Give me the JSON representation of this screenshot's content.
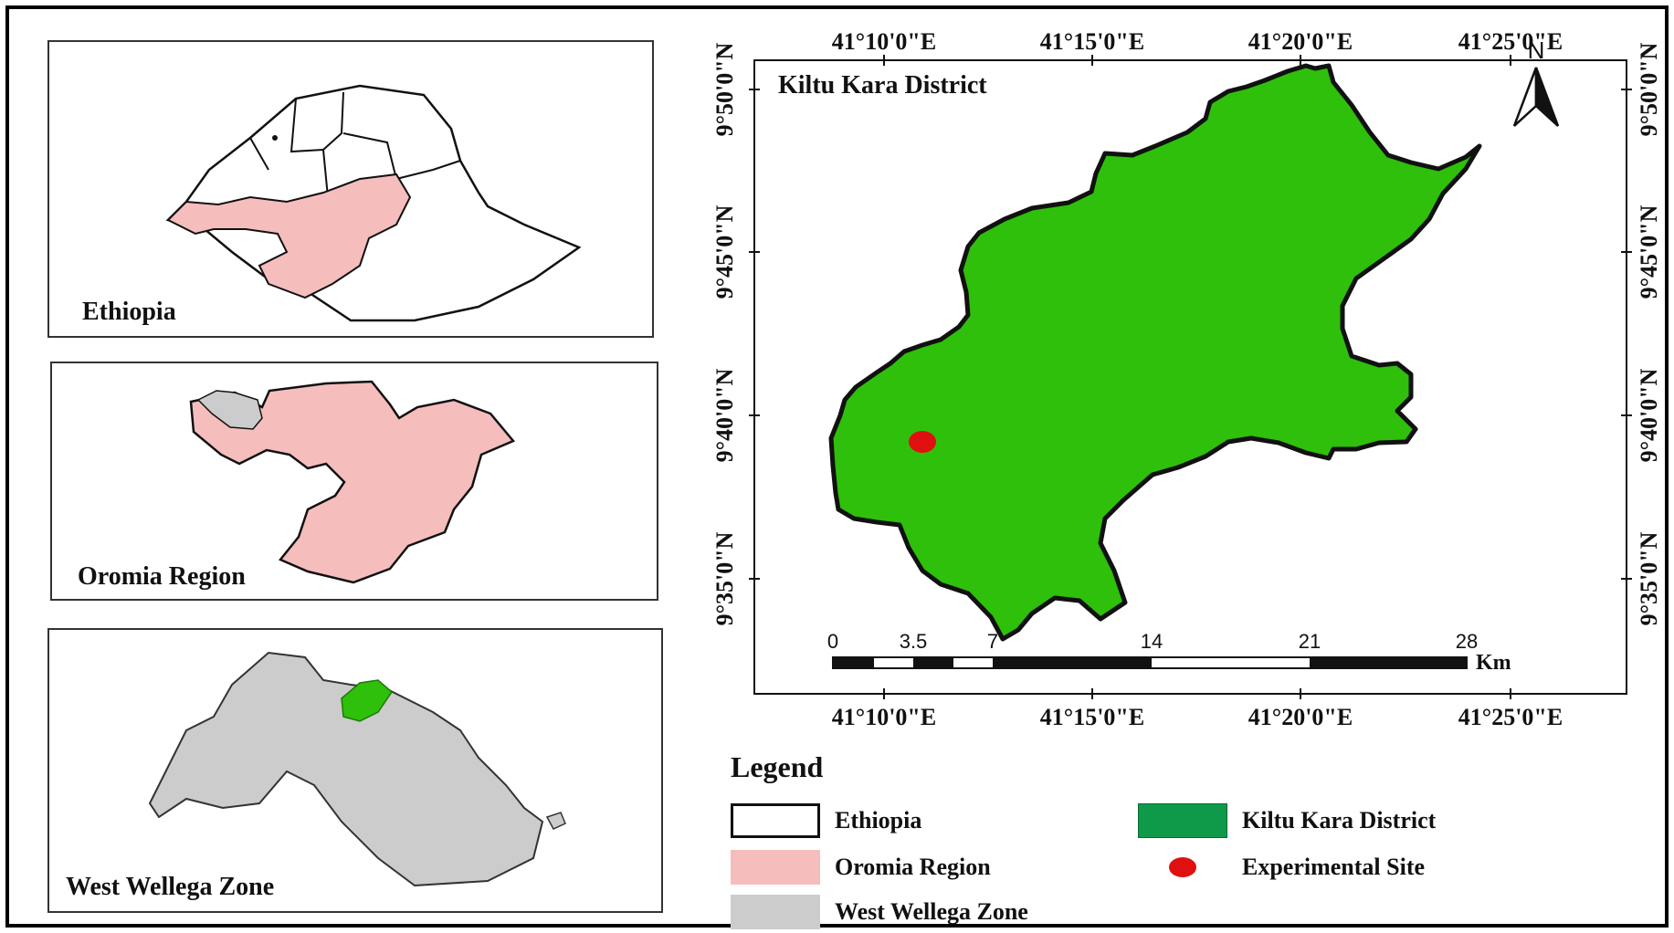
{
  "insets": {
    "ethiopia": {
      "label": "Ethiopia"
    },
    "oromia": {
      "label": "Oromia Region"
    },
    "west_wellega": {
      "label": "West Wellega Zone"
    }
  },
  "main_map": {
    "title": "Kiltu Kara District",
    "north_label": "N",
    "top_longitudes": [
      "41°10'0\"E",
      "41°15'0\"E",
      "41°20'0\"E",
      "41°25'0\"E"
    ],
    "bottom_longitudes": [
      "41°10'0\"E",
      "41°15'0\"E",
      "41°20'0\"E",
      "41°25'0\"E"
    ],
    "left_latitudes": [
      "9°50'0\"N",
      "9°45'0\"N",
      "9°40'0\"N",
      "9°35'0\"N"
    ],
    "right_latitudes": [
      "9°50'0\"N",
      "9°45'0\"N",
      "9°40'0\"N",
      "9°35'0\"N"
    ],
    "scale_bar": {
      "ticks": [
        "0",
        "3.5",
        "7",
        "14",
        "21",
        "28"
      ],
      "unit": "Km"
    }
  },
  "legend": {
    "title": "Legend",
    "items": [
      {
        "label": "Ethiopia",
        "color": "#ffffff"
      },
      {
        "label": "Oromia Region",
        "color": "#f6bdbd"
      },
      {
        "label": "West Wellega Zone",
        "color": "#cccccc"
      },
      {
        "label": "Kiltu Kara District",
        "color": "#0f9a4a"
      },
      {
        "label": "Experimental Site",
        "color": "#e01010"
      }
    ]
  },
  "colors": {
    "district_fill": "#2ec00a",
    "oromia_fill": "#f6bdbd",
    "zone_fill": "#cccccc",
    "site_marker": "#e01010"
  }
}
